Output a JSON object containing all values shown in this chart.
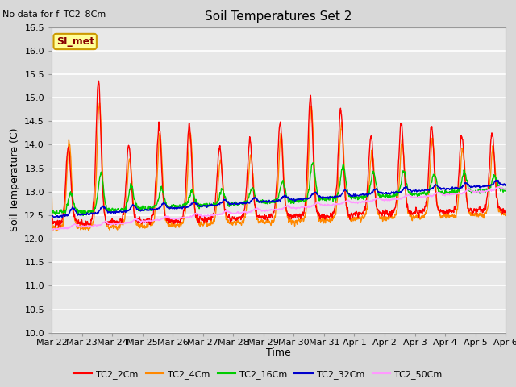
{
  "title": "Soil Temperatures Set 2",
  "subtitle": "No data for f_TC2_8Cm",
  "xlabel": "Time",
  "ylabel": "Soil Temperature (C)",
  "ylim": [
    10.0,
    16.5
  ],
  "yticks": [
    10.0,
    10.5,
    11.0,
    11.5,
    12.0,
    12.5,
    13.0,
    13.5,
    14.0,
    14.5,
    15.0,
    15.5,
    16.0,
    16.5
  ],
  "xtick_labels": [
    "Mar 22",
    "Mar 23",
    "Mar 24",
    "Mar 25",
    "Mar 26",
    "Mar 27",
    "Mar 28",
    "Mar 29",
    "Mar 30",
    "Mar 31",
    "Apr 1",
    "Apr 2",
    "Apr 3",
    "Apr 4",
    "Apr 5",
    "Apr 6"
  ],
  "series_colors": [
    "#ff0000",
    "#ff8800",
    "#00cc00",
    "#0000cc",
    "#ff99ff"
  ],
  "series_labels": [
    "TC2_2Cm",
    "TC2_4Cm",
    "TC2_16Cm",
    "TC2_32Cm",
    "TC2_50Cm"
  ],
  "annotation_text": "SI_met",
  "annotation_box_facecolor": "#ffff99",
  "annotation_box_edgecolor": "#cc9900",
  "annotation_text_color": "#880000",
  "fig_facecolor": "#d8d8d8",
  "ax_facecolor": "#e8e8e8",
  "grid_color": "#ffffff",
  "linewidth_shallow": 1.0,
  "linewidth_deep": 1.0
}
